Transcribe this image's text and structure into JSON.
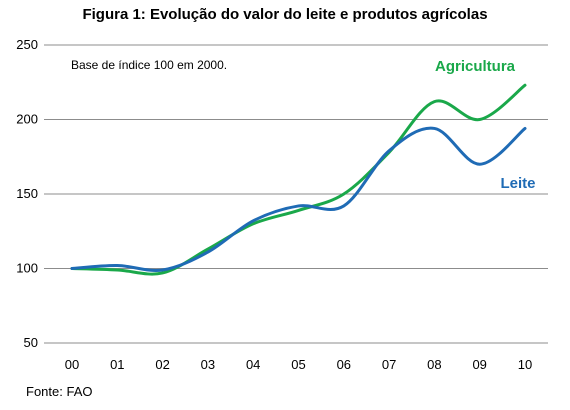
{
  "title": "Figura 1: Evolução do valor do leite e produtos agrícolas",
  "note": "Base de índice 100 em 2000.",
  "source": "Fonte: FAO",
  "chart_data": {
    "type": "line",
    "title": "Figura 1: Evolução do valor do leite e produtos agrícolas",
    "xlabel": "",
    "ylabel": "",
    "categories": [
      "00",
      "01",
      "02",
      "03",
      "04",
      "05",
      "06",
      "07",
      "08",
      "09",
      "10"
    ],
    "ylim": [
      50,
      250
    ],
    "yticks": [
      50,
      100,
      150,
      200,
      250
    ],
    "grid": true,
    "series": [
      {
        "name": "Agricultura",
        "color": "#1aa84a",
        "values": [
          100,
          99,
          97,
          113,
          130,
          139,
          150,
          178,
          212,
          200,
          223
        ]
      },
      {
        "name": "Leite",
        "color": "#1f6bb5",
        "values": [
          100,
          102,
          99,
          111,
          132,
          142,
          142,
          179,
          194,
          170,
          194
        ]
      }
    ]
  }
}
